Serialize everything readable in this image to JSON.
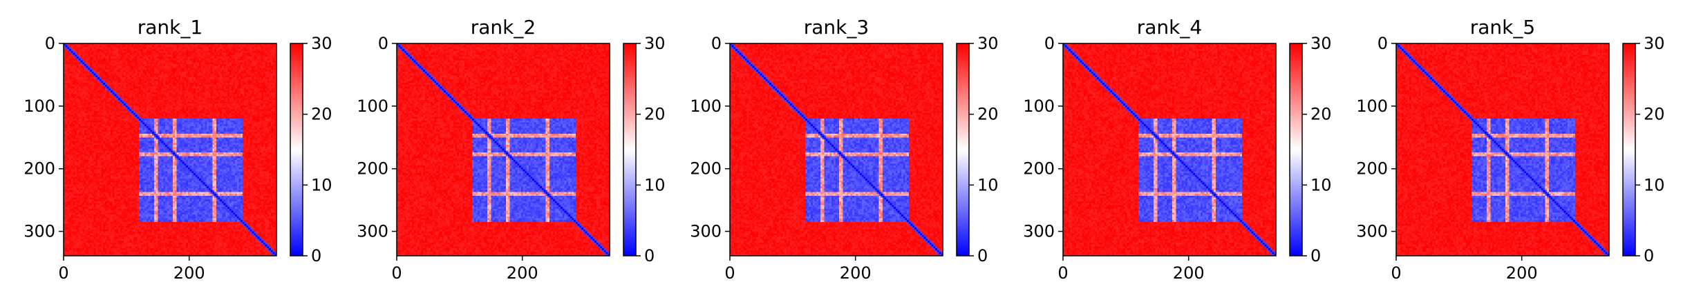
{
  "chart_data": [
    {
      "type": "heatmap",
      "title": "rank_1",
      "xlabel": "",
      "ylabel": "",
      "xlim": [
        0,
        339
      ],
      "ylim": [
        339,
        0
      ],
      "xticks": [
        0,
        200
      ],
      "yticks": [
        0,
        100,
        200,
        300
      ],
      "colorbar": {
        "ticks": [
          0,
          10,
          20,
          30
        ],
        "range": [
          0,
          30
        ],
        "colormap": "bwr"
      },
      "matrix_size": 339,
      "domains": [
        [
          120,
          285
        ],
        [
          338,
          339
        ]
      ],
      "diagonal_value": 0,
      "intra_domain_value": 3,
      "background_value": 30
    },
    {
      "type": "heatmap",
      "title": "rank_2",
      "xlabel": "",
      "ylabel": "",
      "xlim": [
        0,
        339
      ],
      "ylim": [
        339,
        0
      ],
      "xticks": [
        0,
        200
      ],
      "yticks": [
        0,
        100,
        200,
        300
      ],
      "colorbar": {
        "ticks": [
          0,
          10,
          20,
          30
        ],
        "range": [
          0,
          30
        ],
        "colormap": "bwr"
      },
      "matrix_size": 339,
      "domains": [
        [
          120,
          285
        ],
        [
          338,
          339
        ]
      ],
      "diagonal_value": 0,
      "intra_domain_value": 3,
      "background_value": 30
    },
    {
      "type": "heatmap",
      "title": "rank_3",
      "xlabel": "",
      "ylabel": "",
      "xlim": [
        0,
        339
      ],
      "ylim": [
        339,
        0
      ],
      "xticks": [
        0,
        200
      ],
      "yticks": [
        0,
        100,
        200,
        300
      ],
      "colorbar": {
        "ticks": [
          0,
          10,
          20,
          30
        ],
        "range": [
          0,
          30
        ],
        "colormap": "bwr"
      },
      "matrix_size": 339,
      "domains": [
        [
          120,
          285
        ],
        [
          338,
          339
        ]
      ],
      "diagonal_value": 0,
      "intra_domain_value": 3,
      "background_value": 30
    },
    {
      "type": "heatmap",
      "title": "rank_4",
      "xlabel": "",
      "ylabel": "",
      "xlim": [
        0,
        339
      ],
      "ylim": [
        339,
        0
      ],
      "xticks": [
        0,
        200
      ],
      "yticks": [
        0,
        100,
        200,
        300
      ],
      "colorbar": {
        "ticks": [
          0,
          10,
          20,
          30
        ],
        "range": [
          0,
          30
        ],
        "colormap": "bwr"
      },
      "matrix_size": 339,
      "domains": [
        [
          120,
          285
        ],
        [
          338,
          339
        ]
      ],
      "diagonal_value": 0,
      "intra_domain_value": 3,
      "background_value": 30
    },
    {
      "type": "heatmap",
      "title": "rank_5",
      "xlabel": "",
      "ylabel": "",
      "xlim": [
        0,
        339
      ],
      "ylim": [
        339,
        0
      ],
      "xticks": [
        0,
        200
      ],
      "yticks": [
        0,
        100,
        200,
        300
      ],
      "colorbar": {
        "ticks": [
          0,
          10,
          20,
          30
        ],
        "range": [
          0,
          30
        ],
        "colormap": "bwr"
      },
      "matrix_size": 339,
      "domains": [
        [
          120,
          285
        ],
        [
          338,
          339
        ]
      ],
      "diagonal_value": 0,
      "intra_domain_value": 3,
      "background_value": 30
    }
  ],
  "colors": {
    "low": "#0000ff",
    "mid": "#ffffff",
    "high": "#ff0000"
  }
}
